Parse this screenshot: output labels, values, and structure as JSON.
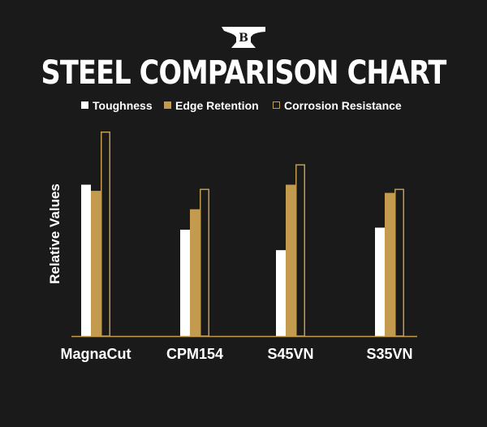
{
  "colors": {
    "background": "#1a1a1a",
    "toughness": "#ffffff",
    "edge_retention": "#c29b4f",
    "corrosion_border": "#c29b4f",
    "text": "#ffffff"
  },
  "logo": {
    "letter": "B",
    "icon": "anvil-icon"
  },
  "chart_data": {
    "type": "bar",
    "title": "STEEL COMPARISON CHART",
    "xlabel": "",
    "ylabel": "Relative Values",
    "ylim": [
      0,
      100
    ],
    "categories": [
      "MagnaCut",
      "CPM154",
      "S45VN",
      "S35VN"
    ],
    "series": [
      {
        "name": "Toughness",
        "values": [
          74,
          52,
          42,
          53
        ]
      },
      {
        "name": "Edge Retention",
        "values": [
          71,
          62,
          74,
          70
        ]
      },
      {
        "name": "Corrosion Resistance",
        "values": [
          100,
          72,
          84,
          72
        ]
      }
    ],
    "legend_position": "top-center",
    "grid": false
  }
}
